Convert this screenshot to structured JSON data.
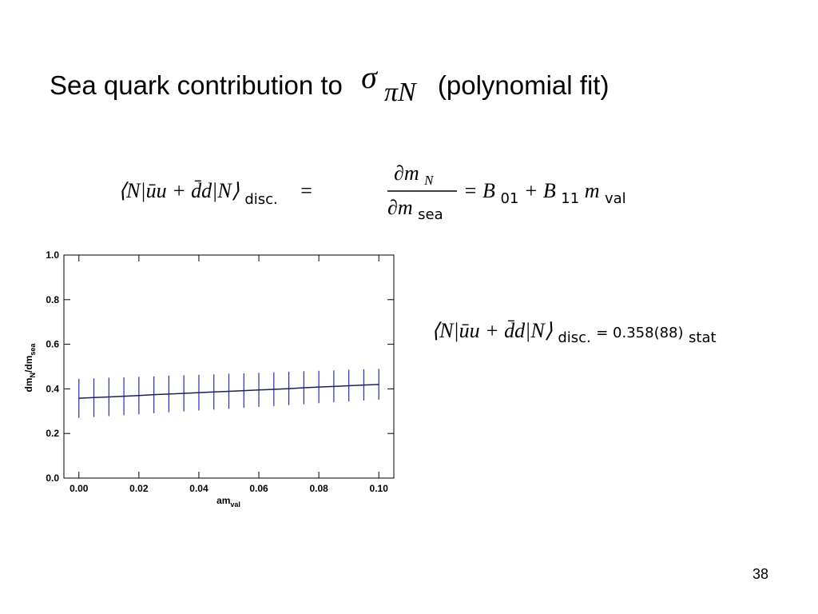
{
  "title": {
    "text": "Sea quark contribution to",
    "symbol": "σ",
    "symbol_sub": "πN",
    "suffix": "(polynomial fit)"
  },
  "equation_1": {
    "lhs": "⟨N|ūu + d̄d|N⟩",
    "lhs_sub": "disc.",
    "eq": "=",
    "num": "∂m",
    "num_sub": "N",
    "den": "∂m",
    "den_sub": "sea",
    "rhs": [
      "= B",
      "01",
      " + B",
      "11",
      "m",
      "val"
    ]
  },
  "equation_2": {
    "lhs": "⟨N|ūu + d̄d|N⟩",
    "lhs_sub": "disc.",
    "rhs": " = 0.358(88)",
    "rhs_sub": "stat"
  },
  "page_number": "38",
  "chart_data": {
    "type": "line",
    "xlabel": [
      "am",
      "val"
    ],
    "ylabel": [
      "dm",
      "N",
      "/dm",
      "sea"
    ],
    "x": [
      0,
      0.005,
      0.01,
      0.015,
      0.02,
      0.025,
      0.03,
      0.035,
      0.04,
      0.045,
      0.05,
      0.055,
      0.06,
      0.065,
      0.07,
      0.075,
      0.08,
      0.085,
      0.09,
      0.095,
      0.1
    ],
    "values": [
      0.358,
      0.361,
      0.364,
      0.367,
      0.37,
      0.374,
      0.377,
      0.38,
      0.383,
      0.386,
      0.389,
      0.392,
      0.395,
      0.398,
      0.401,
      0.405,
      0.408,
      0.411,
      0.414,
      0.417,
      0.42
    ],
    "upper": [
      0.445,
      0.447,
      0.45,
      0.452,
      0.454,
      0.456,
      0.459,
      0.461,
      0.463,
      0.465,
      0.468,
      0.47,
      0.472,
      0.474,
      0.477,
      0.479,
      0.481,
      0.483,
      0.486,
      0.488,
      0.49
    ],
    "lower": [
      0.27,
      0.274,
      0.278,
      0.282,
      0.286,
      0.291,
      0.295,
      0.299,
      0.303,
      0.307,
      0.311,
      0.315,
      0.319,
      0.323,
      0.327,
      0.331,
      0.336,
      0.34,
      0.344,
      0.348,
      0.352
    ],
    "color": "#1f1f5c",
    "band_color": "#2a2ab8",
    "xlim": [
      -0.005,
      0.105
    ],
    "ylim": [
      0,
      1
    ],
    "xticks": [
      {
        "value": 0,
        "label": "0.00"
      },
      {
        "value": 0.02,
        "label": "0.02"
      },
      {
        "value": 0.04,
        "label": "0.04"
      },
      {
        "value": 0.06,
        "label": "0.06"
      },
      {
        "value": 0.08,
        "label": "0.08"
      },
      {
        "value": 0.1,
        "label": "0.10"
      }
    ],
    "yticks": [
      {
        "value": 0,
        "label": "0.0"
      },
      {
        "value": 0.2,
        "label": "0.2"
      },
      {
        "value": 0.4,
        "label": "0.4"
      },
      {
        "value": 0.6,
        "label": "0.6"
      },
      {
        "value": 0.8,
        "label": "0.8"
      },
      {
        "value": 1,
        "label": "1.0"
      }
    ]
  }
}
